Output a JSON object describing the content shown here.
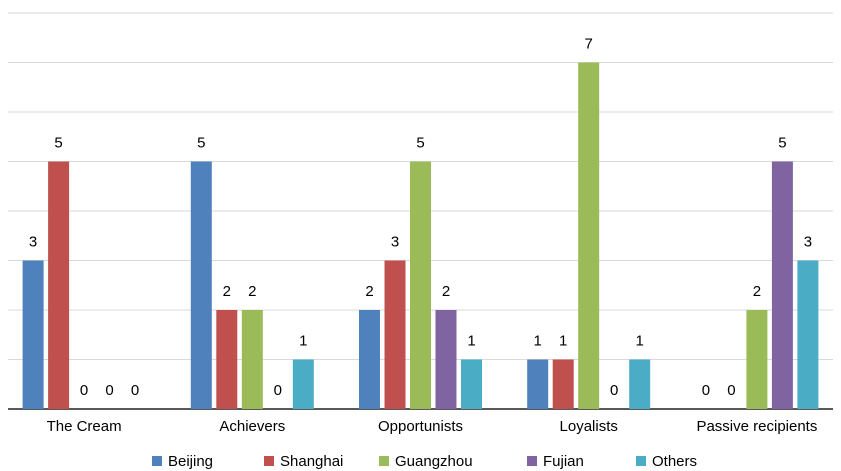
{
  "chart_data": {
    "type": "bar",
    "title": "",
    "xlabel": "",
    "ylabel": "",
    "ylim": [
      0,
      8
    ],
    "grid": true,
    "legend_position": "bottom",
    "categories": [
      "The Cream",
      "Achievers",
      "Opportunists",
      "Loyalists",
      "Passive recipients"
    ],
    "series": [
      {
        "name": "Beijing",
        "color": "#4f81bd",
        "values": [
          3,
          5,
          2,
          1,
          0
        ]
      },
      {
        "name": "Shanghai",
        "color": "#c0504d",
        "values": [
          5,
          2,
          3,
          1,
          0
        ]
      },
      {
        "name": "Guangzhou",
        "color": "#9bbb59",
        "values": [
          0,
          2,
          5,
          7,
          2
        ]
      },
      {
        "name": "Fujian",
        "color": "#8064a2",
        "values": [
          0,
          0,
          2,
          0,
          5
        ]
      },
      {
        "name": "Others",
        "color": "#4bacc6",
        "values": [
          0,
          1,
          1,
          1,
          3
        ]
      }
    ]
  }
}
